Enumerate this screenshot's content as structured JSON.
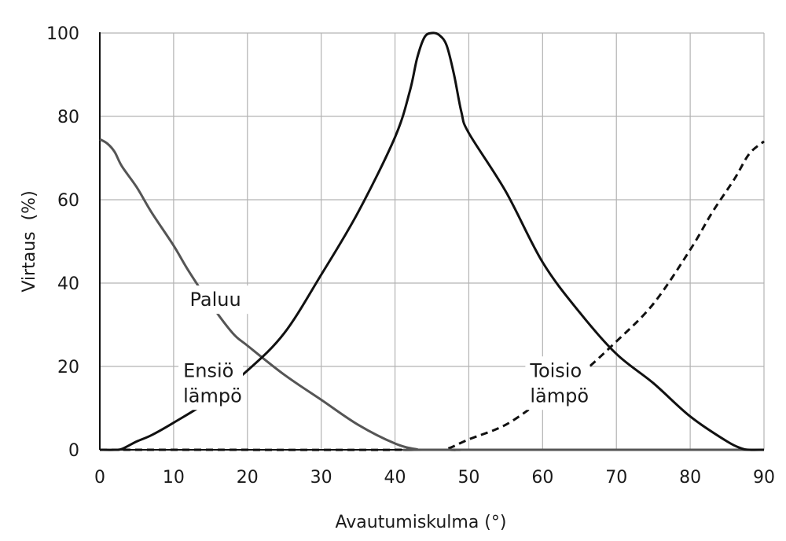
{
  "chart_data": {
    "type": "line",
    "xlabel": "Avautumiskulma (°)",
    "ylabel": "Virtaus  (%)",
    "xlim": [
      0,
      90
    ],
    "ylim": [
      0,
      100
    ],
    "xticks": [
      0,
      10,
      20,
      30,
      40,
      50,
      60,
      70,
      80,
      90
    ],
    "yticks": [
      0,
      20,
      40,
      60,
      80,
      100
    ],
    "grid": true,
    "series": [
      {
        "id": "ensio",
        "name": "Ensiö lämpö",
        "color": "#111111",
        "style": "solid",
        "points": [
          [
            0,
            0
          ],
          [
            2,
            0
          ],
          [
            3,
            0.2
          ],
          [
            5,
            2
          ],
          [
            7,
            3.5
          ],
          [
            10,
            6.5
          ],
          [
            15,
            12
          ],
          [
            20,
            19
          ],
          [
            25,
            28
          ],
          [
            30,
            42
          ],
          [
            35,
            57
          ],
          [
            40,
            75
          ],
          [
            42,
            86
          ],
          [
            43,
            94
          ],
          [
            44,
            99
          ],
          [
            45,
            100
          ],
          [
            46,
            99.5
          ],
          [
            47,
            97
          ],
          [
            48,
            90
          ],
          [
            49,
            81
          ],
          [
            50,
            76
          ],
          [
            55,
            62
          ],
          [
            60,
            45
          ],
          [
            65,
            33
          ],
          [
            70,
            23
          ],
          [
            75,
            16
          ],
          [
            80,
            8
          ],
          [
            85,
            2
          ],
          [
            87,
            0.3
          ],
          [
            88,
            0
          ],
          [
            90,
            0
          ]
        ]
      },
      {
        "id": "paluu",
        "name": "Paluu",
        "color": "#555555",
        "style": "solid",
        "points": [
          [
            0,
            74.5
          ],
          [
            1,
            73.5
          ],
          [
            2,
            71.5
          ],
          [
            3,
            68
          ],
          [
            5,
            63
          ],
          [
            7,
            57
          ],
          [
            10,
            49
          ],
          [
            12,
            43
          ],
          [
            15,
            35
          ],
          [
            18,
            28
          ],
          [
            20,
            25
          ],
          [
            25,
            18
          ],
          [
            30,
            12
          ],
          [
            35,
            6
          ],
          [
            40,
            1.5
          ],
          [
            43,
            0.1
          ],
          [
            45,
            0
          ],
          [
            90,
            0
          ]
        ]
      },
      {
        "id": "toisio",
        "name": "Toisio lämpö",
        "color": "#111111",
        "style": "dashed",
        "points": [
          [
            0,
            0
          ],
          [
            45,
            0
          ],
          [
            47,
            0.2
          ],
          [
            50,
            2.5
          ],
          [
            55,
            6
          ],
          [
            60,
            12
          ],
          [
            65,
            18
          ],
          [
            70,
            26
          ],
          [
            75,
            35
          ],
          [
            80,
            48
          ],
          [
            83,
            57
          ],
          [
            86,
            65
          ],
          [
            88,
            71
          ],
          [
            90,
            74
          ]
        ]
      }
    ],
    "annotations": [
      {
        "id": "paluu",
        "lines": [
          "Paluu"
        ],
        "x": 12.2,
        "y": 34.5
      },
      {
        "id": "ensio",
        "lines": [
          "Ensiö",
          "lämpö"
        ],
        "x": 11.3,
        "y": 17.5
      },
      {
        "id": "toisio",
        "lines": [
          "Toisio",
          "lämpö"
        ],
        "x": 58.3,
        "y": 17.5
      }
    ]
  }
}
